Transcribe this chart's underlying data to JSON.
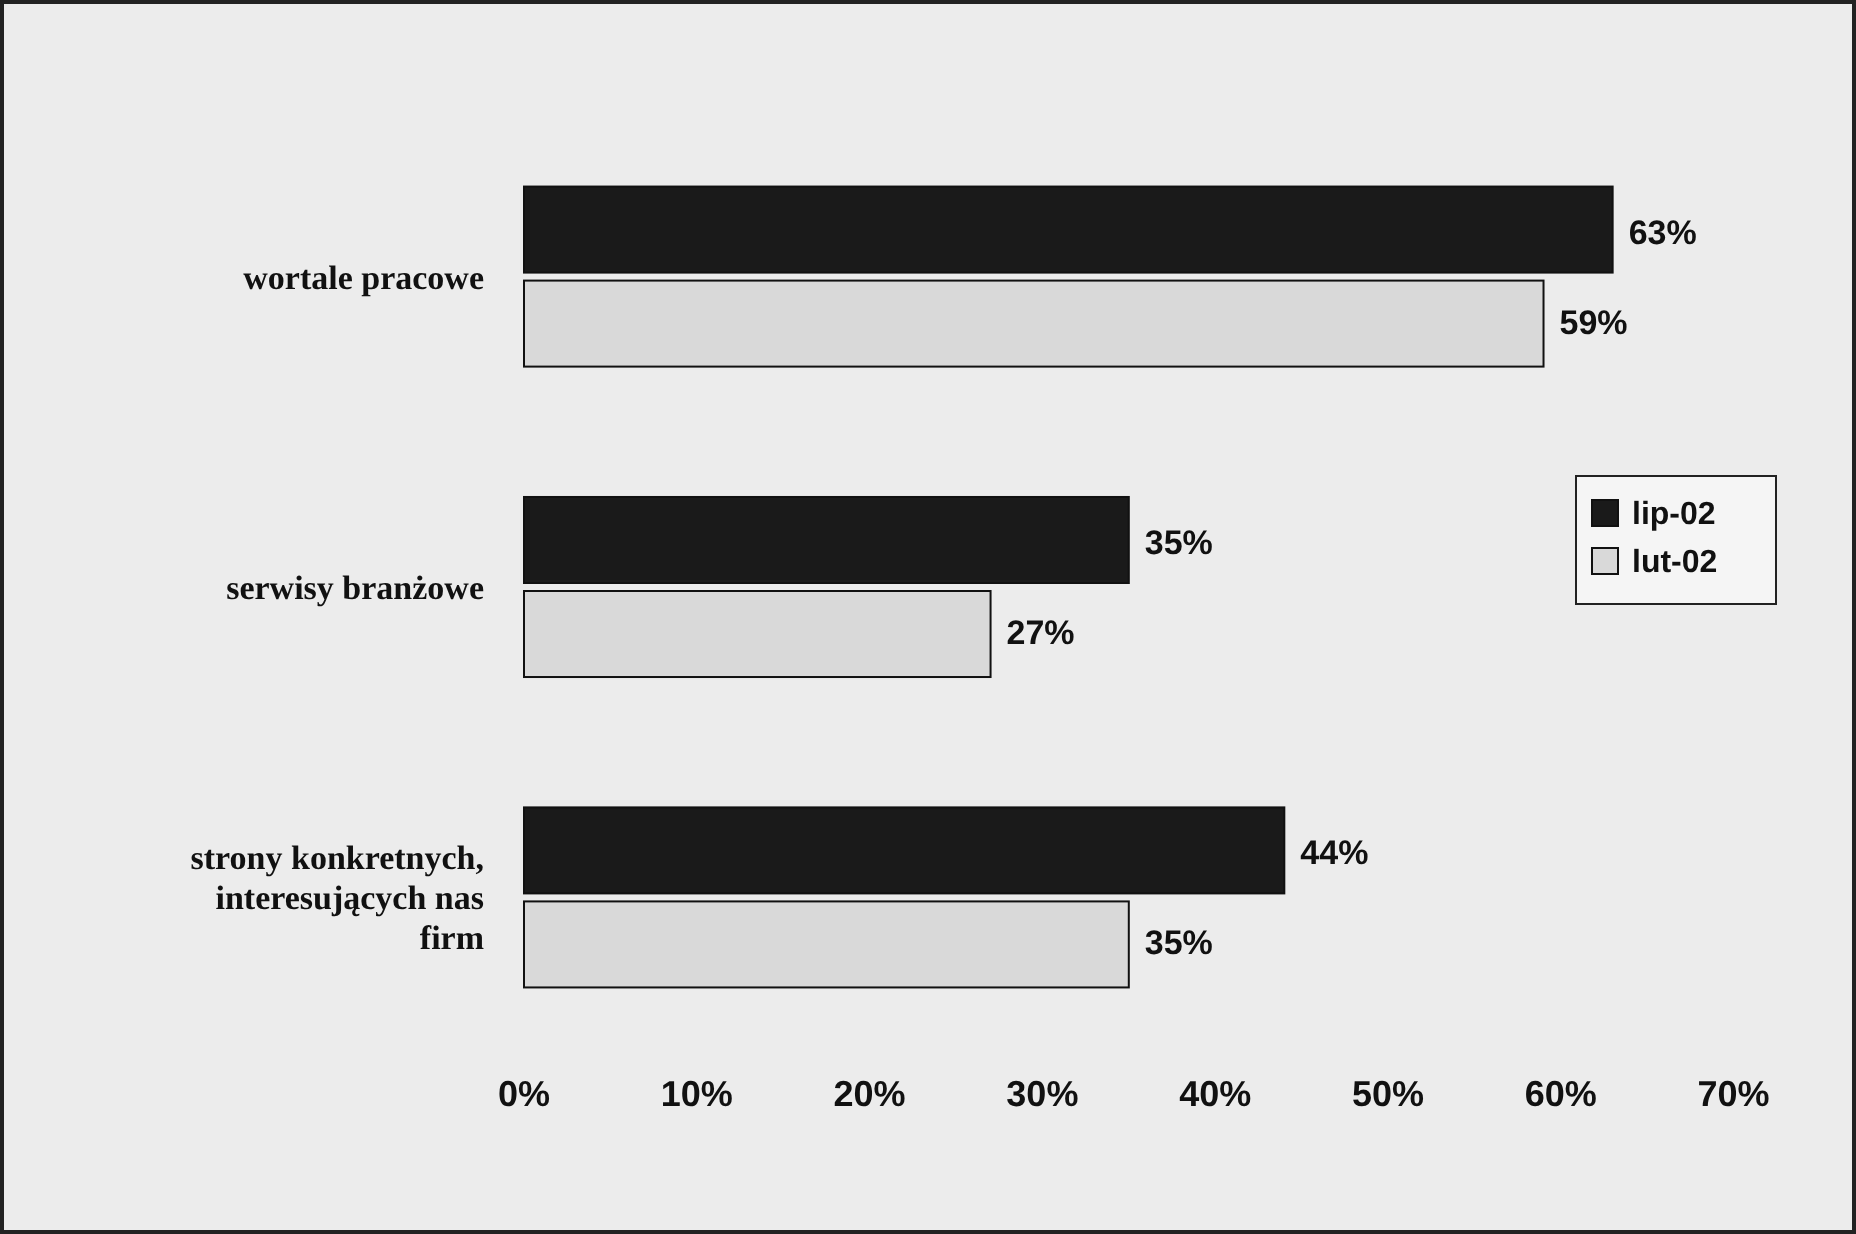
{
  "chart_data": {
    "type": "bar",
    "orientation": "horizontal",
    "categories": [
      "wortale pracowe",
      "serwisy branżowe",
      "strony konkretnych, interesujących nas firm"
    ],
    "series": [
      {
        "name": "lip-02",
        "color": "#1a1a1a",
        "values": [
          63,
          35,
          44
        ],
        "value_labels": [
          "63%",
          "35%",
          "44%"
        ]
      },
      {
        "name": "lut-02",
        "color": "#d9d9d9",
        "values": [
          59,
          27,
          35
        ],
        "value_labels": [
          "59%",
          "27%",
          "35%"
        ]
      }
    ],
    "xlim": [
      0,
      70
    ],
    "xticks": [
      {
        "value": 0,
        "label": "0%"
      },
      {
        "value": 10,
        "label": "10%"
      },
      {
        "value": 20,
        "label": "20%"
      },
      {
        "value": 30,
        "label": "30%"
      },
      {
        "value": 40,
        "label": "40%"
      },
      {
        "value": 50,
        "label": "50%"
      },
      {
        "value": 60,
        "label": "60%"
      },
      {
        "value": 70,
        "label": "70%"
      }
    ],
    "legend": "right",
    "grid": false
  }
}
